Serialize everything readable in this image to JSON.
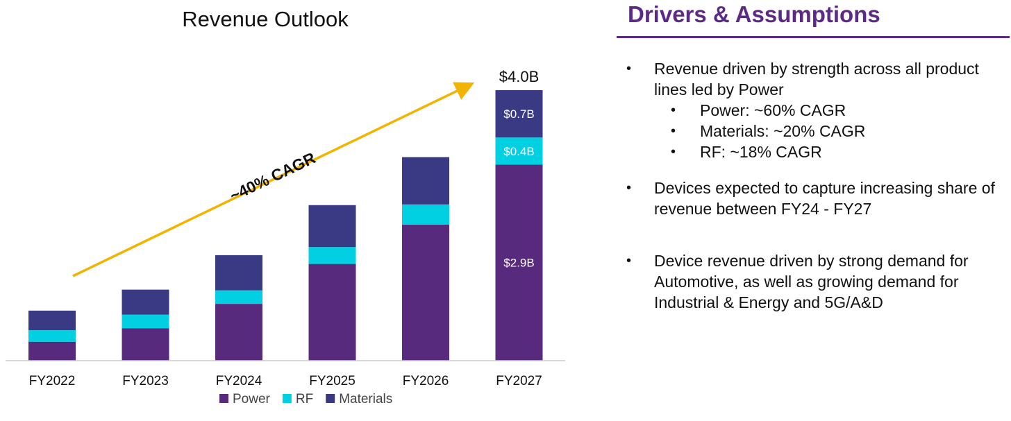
{
  "chart_data": {
    "type": "bar",
    "stacked": true,
    "title": "Revenue Outlook",
    "categories": [
      "FY2022",
      "FY2023",
      "FY2024",
      "FY2025",
      "FY2026",
      "FY2027"
    ],
    "series": [
      {
        "name": "Power",
        "color": "#582a7d",
        "values": [
          0.28,
          0.48,
          0.84,
          1.43,
          2.01,
          2.9
        ]
      },
      {
        "name": "RF",
        "color": "#00d0e2",
        "values": [
          0.17,
          0.2,
          0.2,
          0.25,
          0.3,
          0.4
        ]
      },
      {
        "name": "Materials",
        "color": "#3a3a84",
        "values": [
          0.29,
          0.37,
          0.52,
          0.62,
          0.7,
          0.7
        ]
      }
    ],
    "segment_labels": [
      {
        "category": "FY2027",
        "series": "Power",
        "text": "$2.9B"
      },
      {
        "category": "FY2027",
        "series": "RF",
        "text": "$0.4B"
      },
      {
        "category": "FY2027",
        "series": "Materials",
        "text": "$0.7B"
      }
    ],
    "total_labels": [
      {
        "category": "FY2027",
        "text": "$4.0B"
      }
    ],
    "annotation": {
      "text": "~40% CAGR",
      "color": "#f2b400"
    },
    "ylim": [
      0,
      4.0
    ],
    "grid": false,
    "legend_position": "bottom"
  },
  "panel": {
    "heading": "Drivers & Assumptions",
    "accent_color": "#5b2a86",
    "bullets": [
      {
        "text": "Revenue driven by strength across all product lines led by Power",
        "sub": [
          "Power: ~60% CAGR",
          "Materials: ~20% CAGR",
          "RF: ~18% CAGR"
        ]
      },
      {
        "text": "Devices expected to capture increasing share of revenue between FY24 - FY27",
        "sub": []
      },
      {
        "text": "Device revenue driven by strong demand for Automotive, as well as growing demand for Industrial & Energy and 5G/A&D",
        "sub": []
      }
    ]
  }
}
